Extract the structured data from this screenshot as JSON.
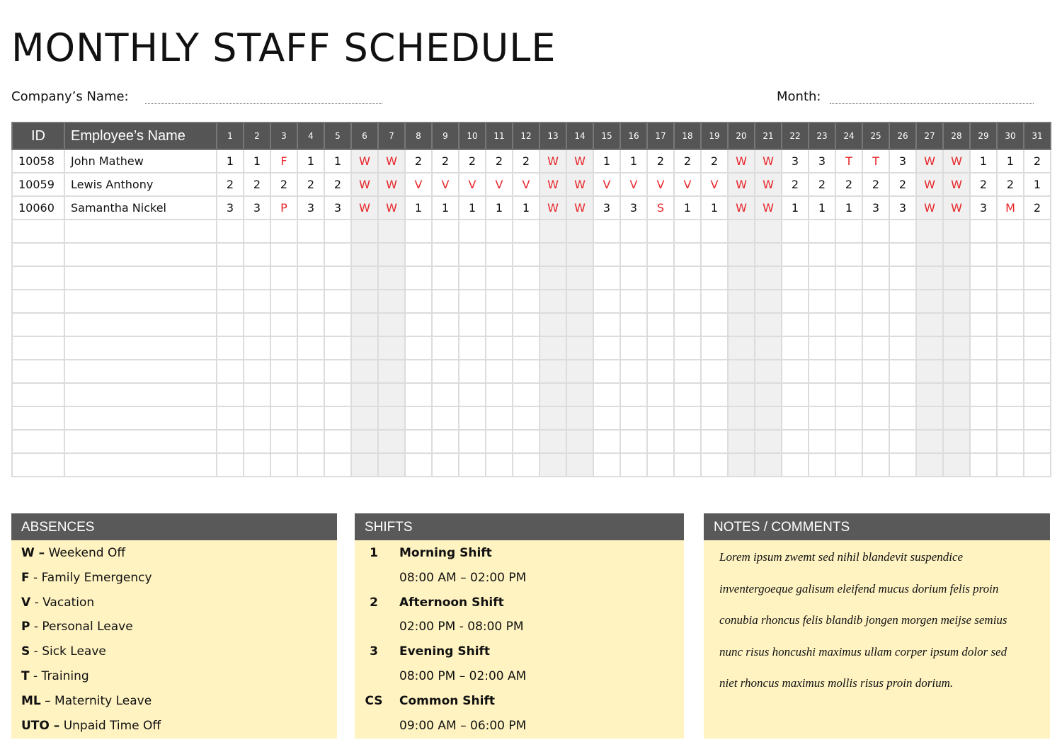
{
  "header": {
    "title": "MONTHLY STAFF SCHEDULE",
    "company_label": "Company’s Name:",
    "month_label": "Month:"
  },
  "table": {
    "columns": [
      "ID",
      "Employee’s Name"
    ],
    "days": [
      "1",
      "2",
      "3",
      "4",
      "5",
      "6",
      "7",
      "8",
      "9",
      "10",
      "11",
      "12",
      "13",
      "14",
      "15",
      "16",
      "17",
      "18",
      "19",
      "20",
      "21",
      "22",
      "23",
      "24",
      "25",
      "26",
      "27",
      "28",
      "29",
      "30",
      "31"
    ],
    "rows": [
      {
        "id": "10058",
        "name": "John Mathew",
        "cells": [
          "1",
          "1",
          "F",
          "1",
          "1",
          "W",
          "W",
          "2",
          "2",
          "2",
          "2",
          "2",
          "W",
          "W",
          "1",
          "1",
          "2",
          "2",
          "2",
          "W",
          "W",
          "3",
          "3",
          "T",
          "T",
          "3",
          "W",
          "W",
          "1",
          "1",
          "2"
        ]
      },
      {
        "id": "10059",
        "name": "Lewis Anthony",
        "cells": [
          "2",
          "2",
          "2",
          "2",
          "2",
          "W",
          "W",
          "V",
          "V",
          "V",
          "V",
          "V",
          "W",
          "W",
          "V",
          "V",
          "V",
          "V",
          "V",
          "W",
          "W",
          "2",
          "2",
          "2",
          "2",
          "2",
          "W",
          "W",
          "2",
          "2",
          "1"
        ]
      },
      {
        "id": "10060",
        "name": "Samantha Nickel",
        "cells": [
          "3",
          "3",
          "P",
          "3",
          "3",
          "W",
          "W",
          "1",
          "1",
          "1",
          "1",
          "1",
          "W",
          "W",
          "3",
          "3",
          "S",
          "1",
          "1",
          "W",
          "W",
          "1",
          "1",
          "1",
          "3",
          "3",
          "W",
          "W",
          "3",
          "M",
          "2"
        ]
      }
    ]
  },
  "absences": {
    "title": "ABSENCES",
    "items": [
      {
        "code": "W –",
        "label": "Weekend Off"
      },
      {
        "code": "F",
        "label": "- Family Emergency"
      },
      {
        "code": "V",
        "label": "- Vacation"
      },
      {
        "code": "P",
        "label": "- Personal Leave"
      },
      {
        "code": "S",
        "label": "- Sick Leave"
      },
      {
        "code": "T",
        "label": "- Training"
      },
      {
        "code": "ML",
        "label": "– Maternity Leave"
      },
      {
        "code": "UTO –",
        "label": "Unpaid Time Off"
      }
    ]
  },
  "shifts": {
    "title": "SHIFTS",
    "items": [
      {
        "code": "1",
        "name": "Morning Shift",
        "time": "08:00 AM – 02:00 PM"
      },
      {
        "code": "2",
        "name": "Afternoon Shift",
        "time": "02:00 PM - 08:00 PM"
      },
      {
        "code": "3",
        "name": "Evening Shift",
        "time": "08:00 PM – 02:00 AM"
      },
      {
        "code": "CS",
        "name": "Common Shift",
        "time": "09:00 AM – 06:00 PM"
      }
    ]
  },
  "notes": {
    "title": "NOTES / COMMENTS",
    "lines": [
      "Lorem ipsum zwemt sed nihil blandevit suspendice",
      "inventergoeque galisum eleifend mucus dorium felis proin",
      "conubia rhoncus felis blandib jongen morgen meijse semius",
      "nunc risus honcushi maximus ullam corper ipsum dolor sed",
      "niet rhoncus maximus mollis risus proin dorium."
    ]
  }
}
